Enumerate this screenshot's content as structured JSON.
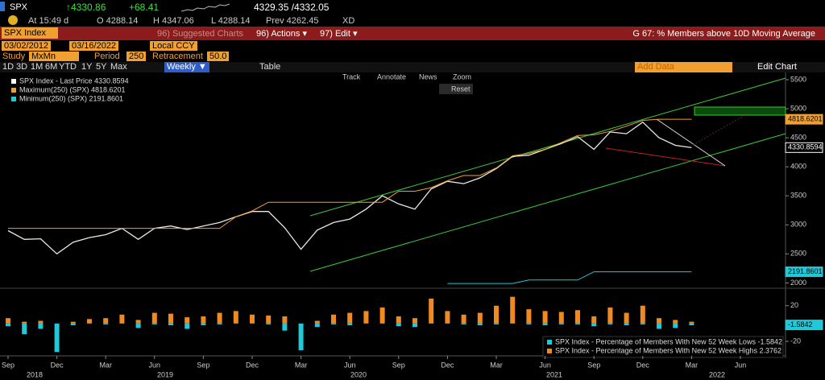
{
  "quote": {
    "ticker": "SPX",
    "last": "↑4330.86",
    "change": "+68.41",
    "bidask": "4329.35 /4332.05",
    "time": "At 15:49 d",
    "open": "O 4288.14",
    "high": "H 4347.06",
    "low": "L 4288.14",
    "prev": "Prev 4262.45",
    "flag": "XD"
  },
  "menu": {
    "security": "SPX Index",
    "suggested": "96) Suggested Charts",
    "actions": "96) Actions ▾",
    "edit": "97) Edit ▾",
    "function": "G 67: % Members above 10D Moving Average"
  },
  "controls": {
    "start": "03/02/2012",
    "end": "03/16/2022",
    "currency": "Local CCY",
    "study_label": "Study",
    "study": "MxMn",
    "period_label": "Period",
    "period": "250",
    "retr_label": "Retracement",
    "retr": "50.0",
    "ranges": [
      "1D",
      "3D",
      "1M",
      "6M",
      "YTD",
      "1Y",
      "5Y",
      "Max"
    ],
    "frequency": "Weekly ▼",
    "table": "Table",
    "add_data": "Add Data",
    "edit_chart": "Edit Chart"
  },
  "toolbar": {
    "track": "Track",
    "annotate": "Annotate",
    "news": "News",
    "zoom": "Zoom",
    "reset": "Reset"
  },
  "chart_data": {
    "type": "line",
    "legend": [
      "SPX Index - Last Price 4330.8594",
      "Maximum(250) (SPX) 4818.6201",
      "Minimum(250) (SPX) 2191.8601"
    ],
    "categories": [
      "Sep",
      null,
      null,
      "Dec",
      null,
      null,
      "Mar",
      null,
      null,
      "Jun",
      null,
      null,
      "Sep",
      null,
      null,
      "Dec",
      null,
      null,
      "Mar",
      null,
      null,
      "Jun",
      null,
      null,
      "Sep",
      null,
      null,
      "Dec",
      null,
      null,
      "Mar",
      null,
      null,
      "Jun",
      null,
      null,
      "Sep",
      null,
      null,
      "Dec",
      null,
      null,
      "Mar",
      null,
      null,
      "Jun"
    ],
    "years": [
      "2018",
      "2019",
      "2020",
      "2021",
      "2022"
    ],
    "ylim": [
      1950,
      5625
    ],
    "yticks": [
      2000,
      2500,
      3000,
      3500,
      4000,
      4500,
      5000,
      5500
    ],
    "series": [
      {
        "name": "SPX Index - Last Price",
        "color": "#e8e8e8",
        "values": [
          2900,
          2750,
          2760,
          2500,
          2700,
          2780,
          2830,
          2940,
          2750,
          2940,
          2980,
          2920,
          2980,
          3040,
          3140,
          3230,
          3230,
          2950,
          2580,
          2910,
          3040,
          3100,
          3270,
          3500,
          3360,
          3270,
          3620,
          3750,
          3710,
          3810,
          3970,
          4180,
          4200,
          4300,
          4400,
          4520,
          4300,
          4600,
          4570,
          4770,
          4500,
          4370,
          4330,
          null,
          null,
          null
        ]
      },
      {
        "name": "Maximum(250) (SPX)",
        "color": "#f0a030",
        "values": [
          2940,
          2940,
          2940,
          2940,
          2940,
          2940,
          2940,
          2940,
          2940,
          2940,
          2940,
          2940,
          2940,
          2940,
          3140,
          3240,
          3390,
          3390,
          3390,
          3390,
          3390,
          3390,
          3390,
          3390,
          3580,
          3580,
          3640,
          3760,
          3850,
          3850,
          3980,
          4190,
          4230,
          4300,
          4420,
          4540,
          4550,
          4610,
          4700,
          4800,
          4818.6201,
          4818.6201,
          4818.6201,
          null,
          null,
          null
        ]
      },
      {
        "name": "Minimum(250) (SPX)",
        "color": "#20c8d8",
        "values": [
          null,
          null,
          null,
          null,
          null,
          null,
          null,
          null,
          null,
          null,
          null,
          null,
          null,
          null,
          null,
          null,
          null,
          null,
          null,
          null,
          null,
          null,
          null,
          null,
          null,
          null,
          null,
          1990,
          1990,
          1990,
          1990,
          1990,
          2050,
          2050,
          2050,
          2050,
          2191.8601,
          2191.8601,
          2191.8601,
          2191.8601,
          2191.8601,
          2191.8601,
          2191.8601,
          null,
          null,
          null
        ]
      }
    ],
    "right_labels": [
      {
        "value": 4818.6201,
        "color": "#f0a030"
      },
      {
        "value": 4330.8594,
        "color": "#ffffff"
      },
      {
        "value": 2191.8601,
        "color": "#20c8d8"
      }
    ],
    "lower": {
      "ylim": [
        -34.5,
        36
      ],
      "yticks": [
        20,
        -20
      ],
      "legend": [
        "SPX Index - Percentage of Members With New 52 Week Lows -1.5842",
        "SPX Index - Percentage of Members With New 52 Week Highs 2.3762"
      ],
      "series": [
        {
          "name": "SPX Index - Percentage of Members With New 52 Week Lows",
          "color": "#20c8d8",
          "values": [
            -3,
            -12,
            -6,
            -32,
            -2,
            0,
            -1,
            0,
            -5,
            -1,
            -2,
            -6,
            -2,
            -1,
            0,
            0,
            -1,
            -8,
            -30,
            -4,
            -1,
            -2,
            0,
            0,
            -3,
            -4,
            0,
            0,
            -1,
            -2,
            -1,
            0,
            -1,
            -2,
            -1,
            -1,
            -3,
            -1,
            -2,
            -1,
            -6,
            -5,
            -2,
            null,
            null,
            null
          ]
        },
        {
          "name": "SPX Index - Percentage of Members With New 52 Week Highs",
          "color": "#f08a20",
          "values": [
            6,
            2,
            3,
            0,
            2,
            5,
            6,
            10,
            4,
            12,
            11,
            7,
            8,
            12,
            14,
            10,
            9,
            8,
            0,
            3,
            10,
            12,
            14,
            18,
            8,
            6,
            28,
            14,
            10,
            12,
            20,
            30,
            16,
            14,
            13,
            15,
            8,
            18,
            12,
            20,
            6,
            4,
            2,
            null,
            null,
            null
          ]
        }
      ],
      "right_label": {
        "value": -1.5842,
        "color": "#20c8d8"
      }
    }
  }
}
